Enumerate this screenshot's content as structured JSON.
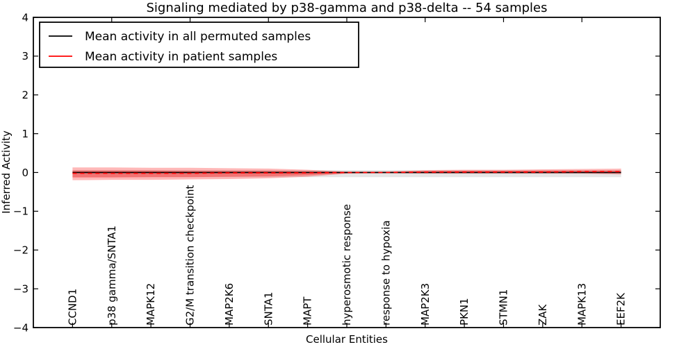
{
  "figure": {
    "title": "Signaling mediated by p38-gamma and p38-delta -- 54 samples",
    "xlabel": "Cellular Entities",
    "ylabel": "Inferred Activity"
  },
  "legend": {
    "position": "upper left",
    "items": [
      {
        "label": "Mean activity in all permuted samples",
        "color": "#000000"
      },
      {
        "label": "Mean activity in patient samples",
        "color": "#ff0000"
      }
    ]
  },
  "chart_data": {
    "type": "line",
    "title": "Signaling mediated by p38-gamma and p38-delta -- 54 samples",
    "xlabel": "Cellular Entities",
    "ylabel": "Inferred Activity",
    "ylim": [
      -4,
      4
    ],
    "xlim": [
      0,
      16
    ],
    "yticks": [
      -4,
      -3,
      -2,
      -1,
      0,
      1,
      2,
      3,
      4
    ],
    "ytick_labels": [
      "−4",
      "−3",
      "−2",
      "−1",
      "0",
      "1",
      "2",
      "3",
      "4"
    ],
    "top_xticks": [
      2,
      4,
      6,
      8,
      10,
      12,
      14
    ],
    "grid": false,
    "legend_position": "upper left",
    "x_positions": [
      1,
      2,
      3,
      4,
      5,
      6,
      7,
      8,
      9,
      10,
      11,
      12,
      13,
      14,
      15
    ],
    "categories": [
      "CCND1",
      "p38 gamma/SNTA1",
      "MAPK12",
      "G2/M transition checkpoint",
      "MAP2K6",
      "SNTA1",
      "MAPT",
      "hyperosmotic response",
      "response to hypoxia",
      "MAP2K3",
      "PKN1",
      "STMN1",
      "ZAK",
      "MAPK13",
      "EEF2K"
    ],
    "series": [
      {
        "name": "Mean activity in all permuted samples",
        "color": "#000000",
        "style": "solid",
        "values": [
          0,
          0,
          0,
          0,
          0,
          0,
          0,
          0,
          0,
          0,
          0,
          0,
          0,
          0,
          0
        ]
      },
      {
        "name": "Mean activity in patient samples",
        "color": "#ff0000",
        "style": "dashed",
        "values": [
          -0.02,
          -0.02,
          -0.02,
          -0.02,
          -0.01,
          -0.01,
          -0.01,
          0.0,
          0.0,
          0.01,
          0.01,
          0.01,
          0.01,
          0.02,
          0.02
        ]
      }
    ],
    "bands": [
      {
        "name": "permuted-std",
        "color": "#999999",
        "opacity": 0.25,
        "upper": [
          0.06,
          0.06,
          0.06,
          0.06,
          0.06,
          0.06,
          0.06,
          0.06,
          0.06,
          0.06,
          0.06,
          0.06,
          0.06,
          0.06,
          0.06
        ],
        "lower": [
          -0.12,
          -0.12,
          -0.12,
          -0.12,
          -0.12,
          -0.12,
          -0.12,
          -0.12,
          -0.12,
          -0.12,
          -0.12,
          -0.12,
          -0.12,
          -0.12,
          -0.12
        ]
      },
      {
        "name": "patient-std-outer",
        "color": "#ff0000",
        "opacity": 0.28,
        "upper": [
          0.13,
          0.13,
          0.12,
          0.12,
          0.11,
          0.1,
          0.07,
          0.02,
          0.02,
          0.06,
          0.07,
          0.07,
          0.08,
          0.09,
          0.1
        ],
        "lower": [
          -0.2,
          -0.19,
          -0.19,
          -0.18,
          -0.17,
          -0.15,
          -0.11,
          -0.03,
          -0.02,
          -0.03,
          -0.03,
          -0.03,
          -0.03,
          -0.03,
          -0.05
        ]
      },
      {
        "name": "patient-std-inner",
        "color": "#ff0000",
        "opacity": 0.3,
        "upper": [
          0.05,
          0.05,
          0.05,
          0.04,
          0.04,
          0.04,
          0.03,
          0.01,
          0.01,
          0.03,
          0.04,
          0.04,
          0.05,
          0.05,
          0.05
        ],
        "lower": [
          -0.13,
          -0.13,
          -0.12,
          -0.12,
          -0.11,
          -0.1,
          -0.07,
          -0.02,
          -0.01,
          -0.01,
          -0.01,
          -0.01,
          -0.01,
          -0.01,
          -0.02
        ]
      }
    ]
  }
}
